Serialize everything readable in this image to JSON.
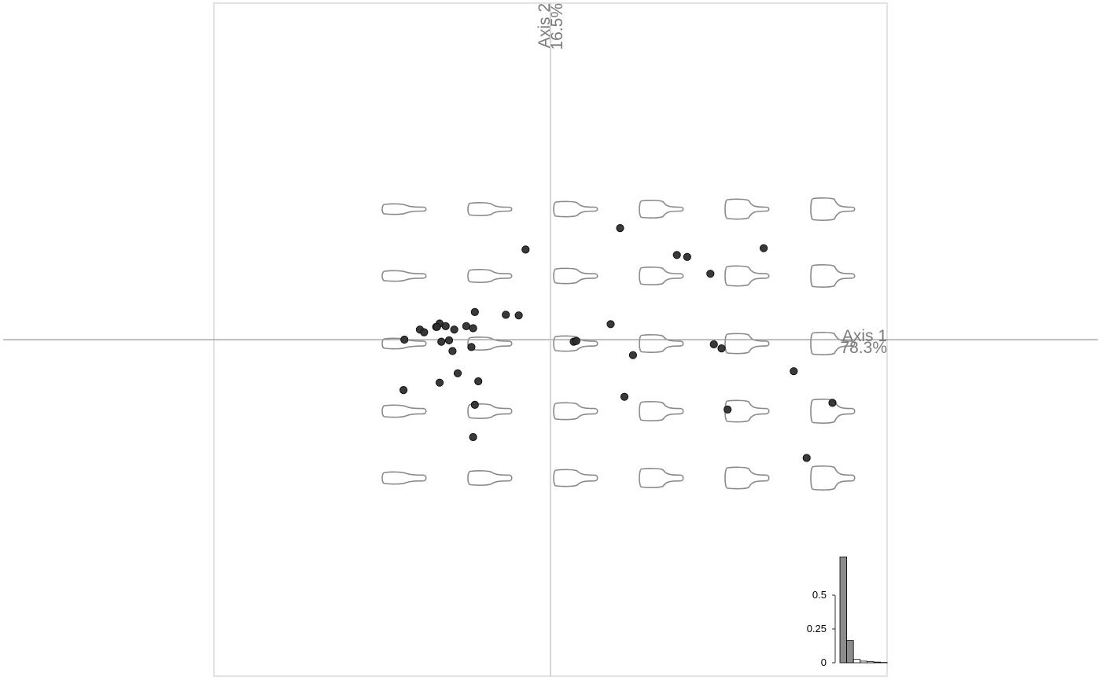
{
  "chart_data": {
    "type": "scatter",
    "title": "",
    "axes": {
      "x": {
        "label": "Axis 1",
        "percent": "78.3%"
      },
      "y": {
        "label": "Axis 2",
        "percent": "16.5%"
      }
    },
    "grid": false,
    "points": [
      {
        "x": -1.7,
        "y": 0.0
      },
      {
        "x": -1.52,
        "y": 0.15
      },
      {
        "x": -1.47,
        "y": 0.11
      },
      {
        "x": -1.33,
        "y": 0.19
      },
      {
        "x": -1.29,
        "y": 0.24
      },
      {
        "x": -1.32,
        "y": 0.19
      },
      {
        "x": -1.22,
        "y": 0.2
      },
      {
        "x": -1.12,
        "y": 0.15
      },
      {
        "x": -0.98,
        "y": 0.2
      },
      {
        "x": -0.9,
        "y": 0.17
      },
      {
        "x": -0.88,
        "y": 0.41
      },
      {
        "x": -1.27,
        "y": -0.03
      },
      {
        "x": -1.18,
        "y": -0.01
      },
      {
        "x": -1.14,
        "y": -0.17
      },
      {
        "x": -0.92,
        "y": -0.11
      },
      {
        "x": -1.08,
        "y": -0.5
      },
      {
        "x": -1.71,
        "y": -0.75
      },
      {
        "x": -1.29,
        "y": -0.64
      },
      {
        "x": -0.84,
        "y": -0.62
      },
      {
        "x": -0.88,
        "y": -0.97
      },
      {
        "x": -0.9,
        "y": -1.45
      },
      {
        "x": -0.52,
        "y": 0.37
      },
      {
        "x": -0.37,
        "y": 0.36
      },
      {
        "x": -0.29,
        "y": 1.34
      },
      {
        "x": 0.27,
        "y": -0.03
      },
      {
        "x": 0.3,
        "y": -0.02
      },
      {
        "x": 0.7,
        "y": 0.23
      },
      {
        "x": 0.96,
        "y": -0.23
      },
      {
        "x": 0.86,
        "y": -0.85
      },
      {
        "x": 0.81,
        "y": 1.66
      },
      {
        "x": 1.47,
        "y": 1.26
      },
      {
        "x": 1.59,
        "y": 1.23
      },
      {
        "x": 1.86,
        "y": 0.98
      },
      {
        "x": 2.48,
        "y": 1.36
      },
      {
        "x": 1.9,
        "y": -0.07
      },
      {
        "x": 1.99,
        "y": -0.13
      },
      {
        "x": 2.06,
        "y": -1.04
      },
      {
        "x": 2.83,
        "y": -0.47
      },
      {
        "x": 3.28,
        "y": -0.94
      },
      {
        "x": 2.98,
        "y": -1.76
      }
    ],
    "eigenvalues": {
      "ticks": [
        "0",
        "0.25",
        "0.5"
      ],
      "values": [
        0.783,
        0.165,
        0.025,
        0.012,
        0.008,
        0.005,
        0.002
      ]
    }
  }
}
